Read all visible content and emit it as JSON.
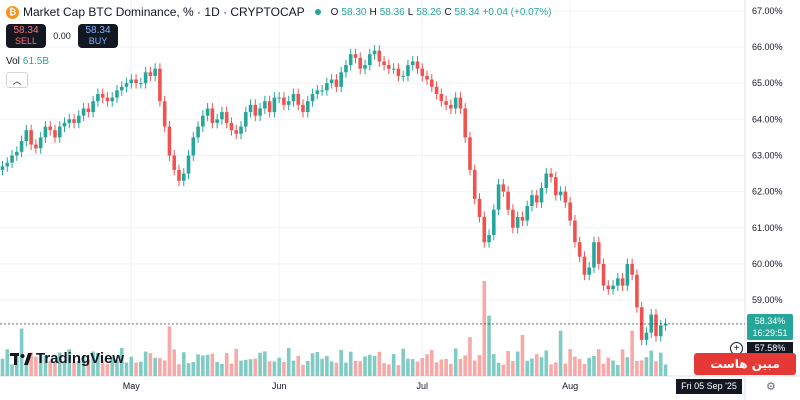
{
  "header": {
    "coin_letter": "₿",
    "symbol": "Market Cap BTC Dominance, % · 1D · CRYPTOCAP",
    "o_label": "O",
    "o_val": "58.30",
    "h_label": "H",
    "h_val": "58.36",
    "l_label": "L",
    "l_val": "58.26",
    "c_label": "C",
    "c_val": "58.34",
    "change": "+0.04 (+0.07%)"
  },
  "trade": {
    "sell_price": "58.34",
    "sell_label": "SELL",
    "spread": "0.00",
    "buy_price": "58.34",
    "buy_label": "BUY"
  },
  "volume": {
    "label": "Vol",
    "value": "61.5B"
  },
  "logo_text": "TradingView",
  "watermark_text": "مبین هاست",
  "last_price": "58.34%",
  "countdown": "16:29:51",
  "crosshair_price": "57.58%",
  "crosshair_date": "Fri 05 Sep '25",
  "colors": {
    "up": "#26a69a",
    "down": "#ef5350",
    "up_vol": "#80cbc4",
    "down_vol": "#f7a9a7"
  },
  "chart_data": {
    "type": "candlestick",
    "title": "Market Cap BTC Dominance, %",
    "interval": "1D",
    "ylim": [
      56.9,
      67.3
    ],
    "y_ticks": [
      "67.00%",
      "66.00%",
      "65.00%",
      "64.00%",
      "63.00%",
      "62.00%",
      "61.00%",
      "60.00%",
      "59.00%"
    ],
    "y_tick_values": [
      67,
      66,
      65,
      64,
      63,
      62,
      61,
      60,
      59
    ],
    "x_labels": [
      {
        "label": "May",
        "index": 27
      },
      {
        "label": "Jun",
        "index": 58
      },
      {
        "label": "Jul",
        "index": 88
      },
      {
        "label": "Aug",
        "index": 119
      }
    ],
    "close": [
      62.7,
      62.8,
      63.0,
      63.1,
      63.4,
      63.7,
      63.3,
      63.2,
      63.5,
      63.8,
      63.7,
      63.5,
      63.8,
      63.9,
      64.0,
      63.9,
      64.1,
      64.3,
      64.2,
      64.5,
      64.7,
      64.6,
      64.5,
      64.6,
      64.8,
      64.9,
      65.0,
      65.1,
      65.0,
      65.0,
      65.3,
      65.2,
      65.4,
      64.5,
      63.8,
      63.0,
      62.6,
      62.3,
      62.5,
      63.0,
      63.5,
      63.8,
      64.1,
      64.3,
      63.9,
      64.0,
      64.2,
      63.9,
      63.7,
      63.6,
      63.8,
      64.2,
      64.4,
      64.1,
      64.3,
      64.5,
      64.2,
      64.6,
      64.6,
      64.4,
      64.5,
      64.7,
      64.4,
      64.2,
      64.5,
      64.7,
      64.8,
      64.8,
      65.0,
      65.1,
      64.9,
      65.3,
      65.5,
      65.8,
      65.7,
      65.4,
      65.5,
      65.8,
      65.9,
      65.6,
      65.5,
      65.4,
      65.4,
      65.2,
      65.2,
      65.5,
      65.6,
      65.4,
      65.2,
      65.1,
      64.9,
      64.7,
      64.5,
      64.4,
      64.3,
      64.6,
      64.3,
      63.5,
      62.6,
      61.8,
      61.3,
      60.6,
      60.8,
      61.5,
      62.2,
      62.0,
      61.5,
      61.0,
      61.3,
      61.2,
      61.6,
      61.9,
      61.7,
      62.1,
      62.5,
      62.4,
      61.9,
      62.0,
      61.7,
      61.2,
      60.6,
      60.2,
      59.7,
      59.9,
      60.6,
      60.0,
      59.4,
      59.3,
      59.4,
      59.6,
      59.4,
      60.0,
      59.7,
      58.8,
      57.9,
      58.1,
      58.6,
      58.0,
      58.3,
      58.34
    ]
  }
}
